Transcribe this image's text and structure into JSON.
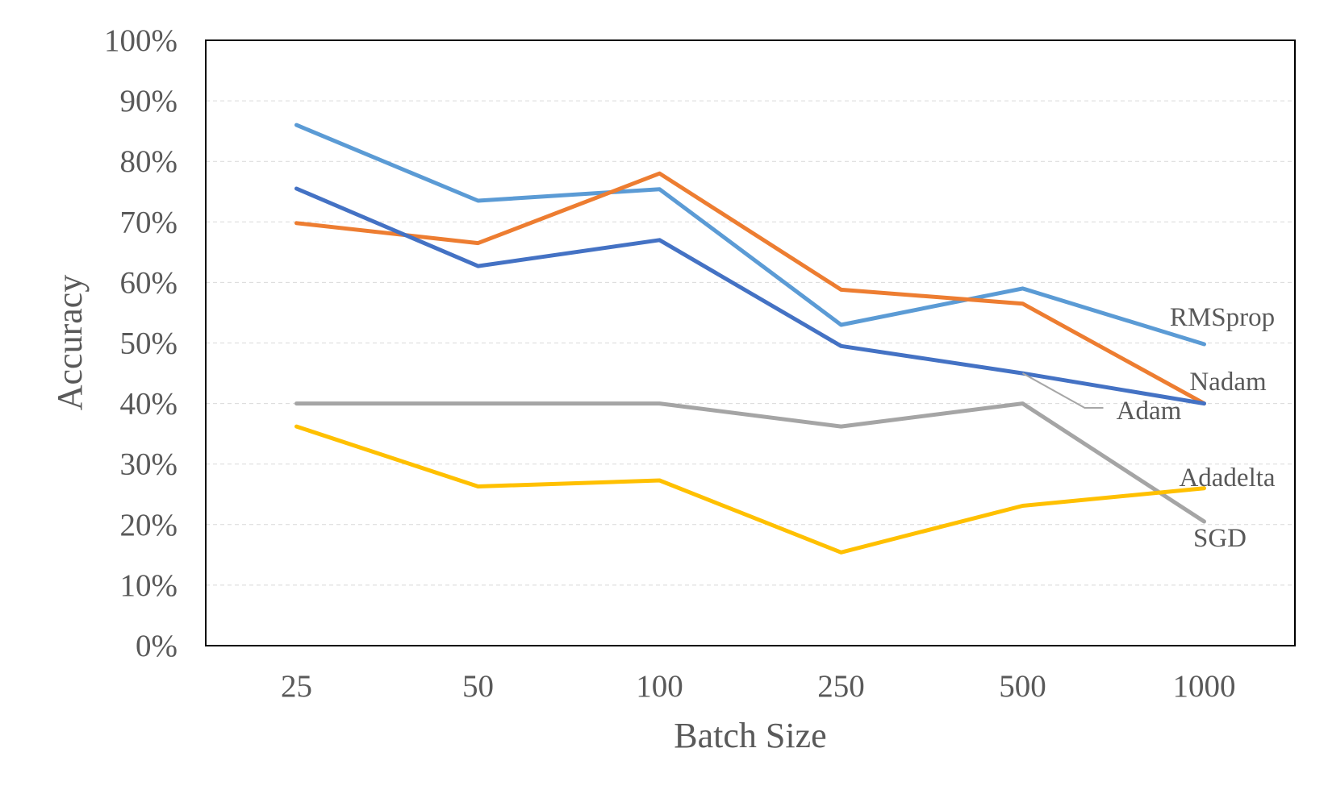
{
  "chart_data": {
    "type": "line",
    "xlabel": "Batch Size",
    "ylabel": "Accuracy",
    "categories": [
      "25",
      "50",
      "100",
      "250",
      "500",
      "1000"
    ],
    "y_ticks": [
      "0%",
      "10%",
      "20%",
      "30%",
      "40%",
      "50%",
      "60%",
      "70%",
      "80%",
      "90%",
      "100%"
    ],
    "ylim": [
      0,
      100
    ],
    "grid": true,
    "legend": "none",
    "series": [
      {
        "name": "RMSprop",
        "color": "#5B9BD5",
        "values": [
          86,
          73.5,
          75.4,
          53,
          59,
          49.8
        ]
      },
      {
        "name": "Nadam",
        "color": "#ED7D31",
        "values": [
          69.8,
          66.5,
          78,
          58.8,
          56.5,
          40
        ]
      },
      {
        "name": "Adam",
        "color": "#4472C4",
        "values": [
          75.5,
          62.7,
          67,
          49.5,
          45,
          40
        ]
      },
      {
        "name": "SGD",
        "color": "#A5A5A5",
        "values": [
          40,
          40,
          40,
          36.2,
          40,
          20.5
        ]
      },
      {
        "name": "Adadelta",
        "color": "#FFC000",
        "values": [
          36.2,
          26.3,
          27.3,
          15.4,
          23.1,
          26
        ]
      }
    ]
  }
}
